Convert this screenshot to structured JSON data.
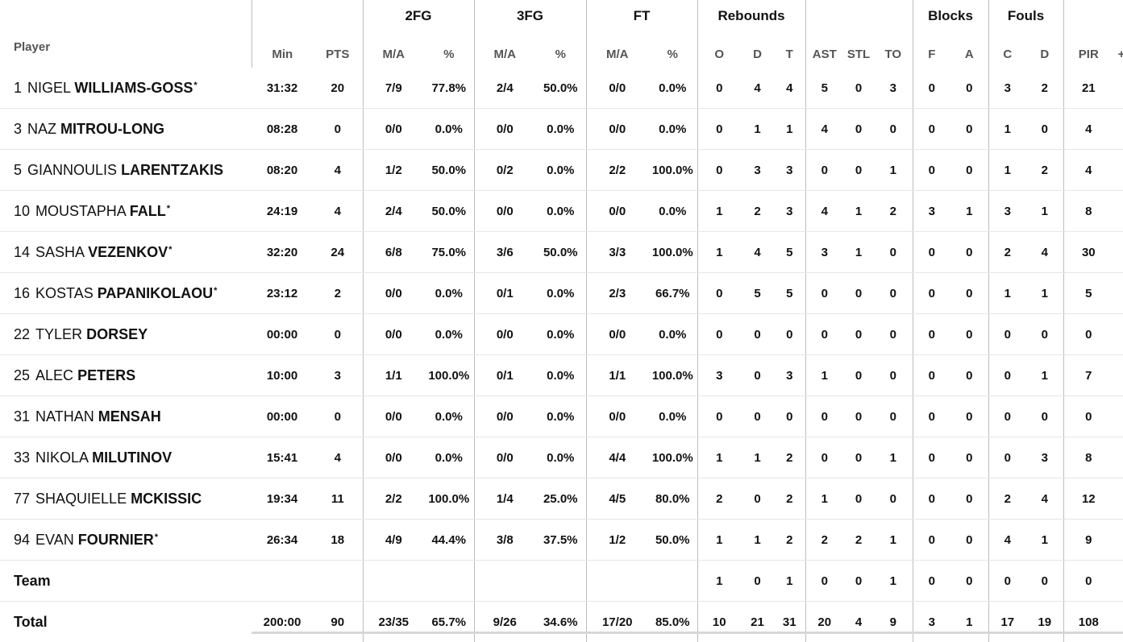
{
  "groups": {
    "fg2": "2FG",
    "fg3": "3FG",
    "ft": "FT",
    "rebounds": "Rebounds",
    "blocks": "Blocks",
    "fouls": "Fouls"
  },
  "columns": {
    "player": "Player",
    "min": "Min",
    "pts": "PTS",
    "fg2_ma": "M/A",
    "fg2_pct": "%",
    "fg3_ma": "M/A",
    "fg3_pct": "%",
    "ft_ma": "M/A",
    "ft_pct": "%",
    "reb_o": "O",
    "reb_d": "D",
    "reb_t": "T",
    "ast": "AST",
    "stl": "STL",
    "to": "TO",
    "blk_f": "F",
    "blk_a": "A",
    "foul_c": "C",
    "foul_d": "D",
    "pir": "PIR",
    "pm": "+/"
  },
  "players": [
    {
      "number": "1",
      "first": "NIGEL",
      "last": "WILLIAMS-GOSS",
      "starter": "*",
      "min": "31:32",
      "pts": "20",
      "fg2_ma": "7/9",
      "fg2_pct": "77.8%",
      "fg3_ma": "2/4",
      "fg3_pct": "50.0%",
      "ft_ma": "0/0",
      "ft_pct": "0.0%",
      "reb_o": "0",
      "reb_d": "4",
      "reb_t": "4",
      "ast": "5",
      "stl": "0",
      "to": "3",
      "blk_f": "0",
      "blk_a": "0",
      "foul_c": "3",
      "foul_d": "2",
      "pir": "21"
    },
    {
      "number": "3",
      "first": "NAZ",
      "last": "MITROU-LONG",
      "starter": "",
      "min": "08:28",
      "pts": "0",
      "fg2_ma": "0/0",
      "fg2_pct": "0.0%",
      "fg3_ma": "0/0",
      "fg3_pct": "0.0%",
      "ft_ma": "0/0",
      "ft_pct": "0.0%",
      "reb_o": "0",
      "reb_d": "1",
      "reb_t": "1",
      "ast": "4",
      "stl": "0",
      "to": "0",
      "blk_f": "0",
      "blk_a": "0",
      "foul_c": "1",
      "foul_d": "0",
      "pir": "4"
    },
    {
      "number": "5",
      "first": "GIANNOULIS",
      "last": "LARENTZAKIS",
      "starter": "",
      "min": "08:20",
      "pts": "4",
      "fg2_ma": "1/2",
      "fg2_pct": "50.0%",
      "fg3_ma": "0/2",
      "fg3_pct": "0.0%",
      "ft_ma": "2/2",
      "ft_pct": "100.0%",
      "reb_o": "0",
      "reb_d": "3",
      "reb_t": "3",
      "ast": "0",
      "stl": "0",
      "to": "1",
      "blk_f": "0",
      "blk_a": "0",
      "foul_c": "1",
      "foul_d": "2",
      "pir": "4"
    },
    {
      "number": "10",
      "first": "MOUSTAPHA",
      "last": "FALL",
      "starter": "*",
      "min": "24:19",
      "pts": "4",
      "fg2_ma": "2/4",
      "fg2_pct": "50.0%",
      "fg3_ma": "0/0",
      "fg3_pct": "0.0%",
      "ft_ma": "0/0",
      "ft_pct": "0.0%",
      "reb_o": "1",
      "reb_d": "2",
      "reb_t": "3",
      "ast": "4",
      "stl": "1",
      "to": "2",
      "blk_f": "3",
      "blk_a": "1",
      "foul_c": "3",
      "foul_d": "1",
      "pir": "8"
    },
    {
      "number": "14",
      "first": "SASHA",
      "last": "VEZENKOV",
      "starter": "*",
      "min": "32:20",
      "pts": "24",
      "fg2_ma": "6/8",
      "fg2_pct": "75.0%",
      "fg3_ma": "3/6",
      "fg3_pct": "50.0%",
      "ft_ma": "3/3",
      "ft_pct": "100.0%",
      "reb_o": "1",
      "reb_d": "4",
      "reb_t": "5",
      "ast": "3",
      "stl": "1",
      "to": "0",
      "blk_f": "0",
      "blk_a": "0",
      "foul_c": "2",
      "foul_d": "4",
      "pir": "30"
    },
    {
      "number": "16",
      "first": "KOSTAS",
      "last": "PAPANIKOLAOU",
      "starter": "*",
      "min": "23:12",
      "pts": "2",
      "fg2_ma": "0/0",
      "fg2_pct": "0.0%",
      "fg3_ma": "0/1",
      "fg3_pct": "0.0%",
      "ft_ma": "2/3",
      "ft_pct": "66.7%",
      "reb_o": "0",
      "reb_d": "5",
      "reb_t": "5",
      "ast": "0",
      "stl": "0",
      "to": "0",
      "blk_f": "0",
      "blk_a": "0",
      "foul_c": "1",
      "foul_d": "1",
      "pir": "5"
    },
    {
      "number": "22",
      "first": "TYLER",
      "last": "DORSEY",
      "starter": "",
      "min": "00:00",
      "pts": "0",
      "fg2_ma": "0/0",
      "fg2_pct": "0.0%",
      "fg3_ma": "0/0",
      "fg3_pct": "0.0%",
      "ft_ma": "0/0",
      "ft_pct": "0.0%",
      "reb_o": "0",
      "reb_d": "0",
      "reb_t": "0",
      "ast": "0",
      "stl": "0",
      "to": "0",
      "blk_f": "0",
      "blk_a": "0",
      "foul_c": "0",
      "foul_d": "0",
      "pir": "0"
    },
    {
      "number": "25",
      "first": "ALEC",
      "last": "PETERS",
      "starter": "",
      "min": "10:00",
      "pts": "3",
      "fg2_ma": "1/1",
      "fg2_pct": "100.0%",
      "fg3_ma": "0/1",
      "fg3_pct": "0.0%",
      "ft_ma": "1/1",
      "ft_pct": "100.0%",
      "reb_o": "3",
      "reb_d": "0",
      "reb_t": "3",
      "ast": "1",
      "stl": "0",
      "to": "0",
      "blk_f": "0",
      "blk_a": "0",
      "foul_c": "0",
      "foul_d": "1",
      "pir": "7"
    },
    {
      "number": "31",
      "first": "NATHAN",
      "last": "MENSAH",
      "starter": "",
      "min": "00:00",
      "pts": "0",
      "fg2_ma": "0/0",
      "fg2_pct": "0.0%",
      "fg3_ma": "0/0",
      "fg3_pct": "0.0%",
      "ft_ma": "0/0",
      "ft_pct": "0.0%",
      "reb_o": "0",
      "reb_d": "0",
      "reb_t": "0",
      "ast": "0",
      "stl": "0",
      "to": "0",
      "blk_f": "0",
      "blk_a": "0",
      "foul_c": "0",
      "foul_d": "0",
      "pir": "0"
    },
    {
      "number": "33",
      "first": "NIKOLA",
      "last": "MILUTINOV",
      "starter": "",
      "min": "15:41",
      "pts": "4",
      "fg2_ma": "0/0",
      "fg2_pct": "0.0%",
      "fg3_ma": "0/0",
      "fg3_pct": "0.0%",
      "ft_ma": "4/4",
      "ft_pct": "100.0%",
      "reb_o": "1",
      "reb_d": "1",
      "reb_t": "2",
      "ast": "0",
      "stl": "0",
      "to": "1",
      "blk_f": "0",
      "blk_a": "0",
      "foul_c": "0",
      "foul_d": "3",
      "pir": "8"
    },
    {
      "number": "77",
      "first": "SHAQUIELLE",
      "last": "MCKISSIC",
      "starter": "",
      "min": "19:34",
      "pts": "11",
      "fg2_ma": "2/2",
      "fg2_pct": "100.0%",
      "fg3_ma": "1/4",
      "fg3_pct": "25.0%",
      "ft_ma": "4/5",
      "ft_pct": "80.0%",
      "reb_o": "2",
      "reb_d": "0",
      "reb_t": "2",
      "ast": "1",
      "stl": "0",
      "to": "0",
      "blk_f": "0",
      "blk_a": "0",
      "foul_c": "2",
      "foul_d": "4",
      "pir": "12"
    },
    {
      "number": "94",
      "first": "EVAN",
      "last": "FOURNIER",
      "starter": "*",
      "min": "26:34",
      "pts": "18",
      "fg2_ma": "4/9",
      "fg2_pct": "44.4%",
      "fg3_ma": "3/8",
      "fg3_pct": "37.5%",
      "ft_ma": "1/2",
      "ft_pct": "50.0%",
      "reb_o": "1",
      "reb_d": "1",
      "reb_t": "2",
      "ast": "2",
      "stl": "2",
      "to": "1",
      "blk_f": "0",
      "blk_a": "0",
      "foul_c": "4",
      "foul_d": "1",
      "pir": "9"
    }
  ],
  "team": {
    "label": "Team",
    "reb_o": "1",
    "reb_d": "0",
    "reb_t": "1",
    "ast": "0",
    "stl": "0",
    "to": "1",
    "blk_f": "0",
    "blk_a": "0",
    "foul_c": "0",
    "foul_d": "0",
    "pir": "0"
  },
  "total": {
    "label": "Total",
    "min": "200:00",
    "pts": "90",
    "fg2_ma": "23/35",
    "fg2_pct": "65.7%",
    "fg3_ma": "9/26",
    "fg3_pct": "34.6%",
    "ft_ma": "17/20",
    "ft_pct": "85.0%",
    "reb_o": "10",
    "reb_d": "21",
    "reb_t": "31",
    "ast": "20",
    "stl": "4",
    "to": "9",
    "blk_f": "3",
    "blk_a": "1",
    "foul_c": "17",
    "foul_d": "19",
    "pir": "108"
  }
}
